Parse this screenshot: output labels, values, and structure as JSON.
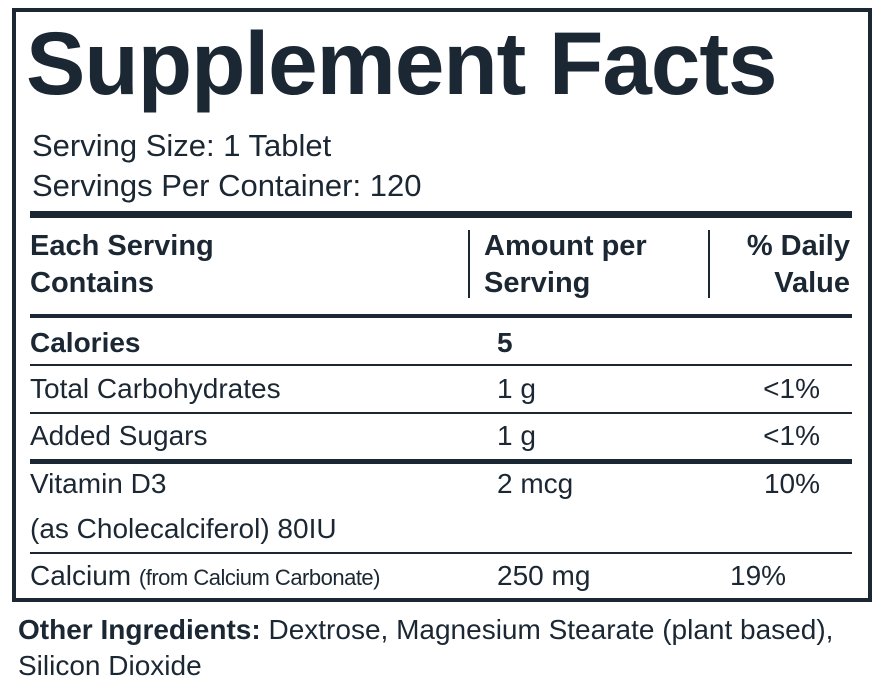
{
  "title": "Supplement Facts",
  "serving_size": "Serving Size: 1 Tablet",
  "servings_per_container": "Servings Per Container: 120",
  "table": {
    "headers": [
      "Each Serving Contains",
      "Amount per Serving",
      "% Daily Value"
    ],
    "rows": [
      {
        "name": "Calories",
        "amount": "5"
      },
      {
        "name": "Total Carbohydrates",
        "amount": "1 g",
        "daily_value": "<1%"
      },
      {
        "name": "Added Sugars",
        "amount": "1 g",
        "daily_value": "<1%"
      },
      {
        "name": "Vitamin D3",
        "note": "(as Cholecalciferol) 80IU",
        "amount": "2 mcg",
        "daily_value": "10%"
      },
      {
        "name": "Calcium",
        "note": "(from Calcium Carbonate)",
        "amount": "250 mg",
        "daily_value": "19%"
      }
    ]
  },
  "other_ingredients": {
    "label": "Other Ingredients:",
    "text": "Dextrose, Magnesium Stearate (plant based), Silicon Dioxide"
  }
}
